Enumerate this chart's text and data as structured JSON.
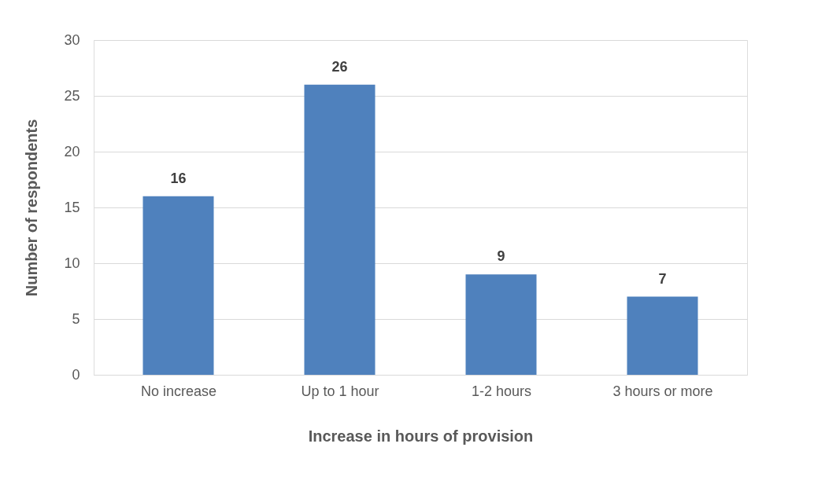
{
  "chart_data": {
    "type": "bar",
    "xlabel": "Increase in hours of provision",
    "ylabel": "Number of respondents",
    "categories": [
      "No increase",
      "Up to 1 hour",
      "1-2 hours",
      "3 hours or more"
    ],
    "values": [
      16,
      26,
      9,
      7
    ],
    "color": "#4f81bd",
    "ylim": [
      0,
      30
    ],
    "yticks": [
      0,
      5,
      10,
      15,
      20,
      25,
      30
    ],
    "grid": "y",
    "data_labels": true
  }
}
